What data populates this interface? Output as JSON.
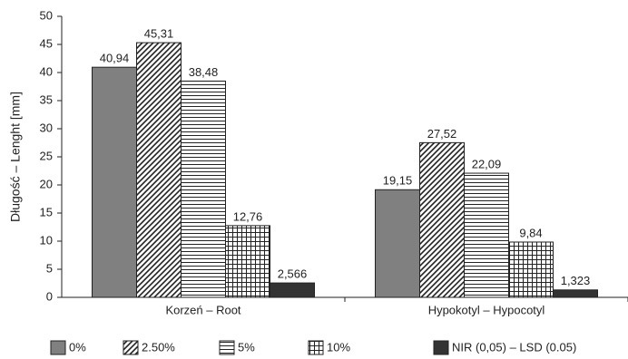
{
  "chart_data": {
    "type": "bar",
    "y_label": "Długość – Lenght [mm]",
    "categories": [
      "Korzeń – Root",
      "Hypokotyl – Hypocotyl"
    ],
    "series": [
      {
        "name": "0%",
        "color": "#808080",
        "pattern": "solid",
        "values": [
          40.94,
          19.15
        ],
        "value_labels": [
          "40,94",
          "19,15"
        ]
      },
      {
        "name": "2.50%",
        "color": "#222222",
        "pattern": "diagonal",
        "values": [
          45.31,
          27.52
        ],
        "value_labels": [
          "45,31",
          "27,52"
        ]
      },
      {
        "name": "5%",
        "color": "#222222",
        "pattern": "horizontal",
        "values": [
          38.48,
          22.09
        ],
        "value_labels": [
          "38,48",
          "22,09"
        ]
      },
      {
        "name": "10%",
        "color": "#222222",
        "pattern": "grid",
        "values": [
          12.76,
          9.84
        ],
        "value_labels": [
          "12,76",
          "9,84"
        ]
      },
      {
        "name": "NIR (0,05) – LSD (0.05)",
        "color": "#333333",
        "pattern": "solid",
        "values": [
          2.566,
          1.323
        ],
        "value_labels": [
          "2,566",
          "1,323"
        ]
      }
    ],
    "ylim": [
      0,
      50
    ],
    "yticks": [
      0,
      5,
      10,
      15,
      20,
      25,
      30,
      35,
      40,
      45,
      50
    ],
    "grid": false,
    "legend": "bottom"
  }
}
